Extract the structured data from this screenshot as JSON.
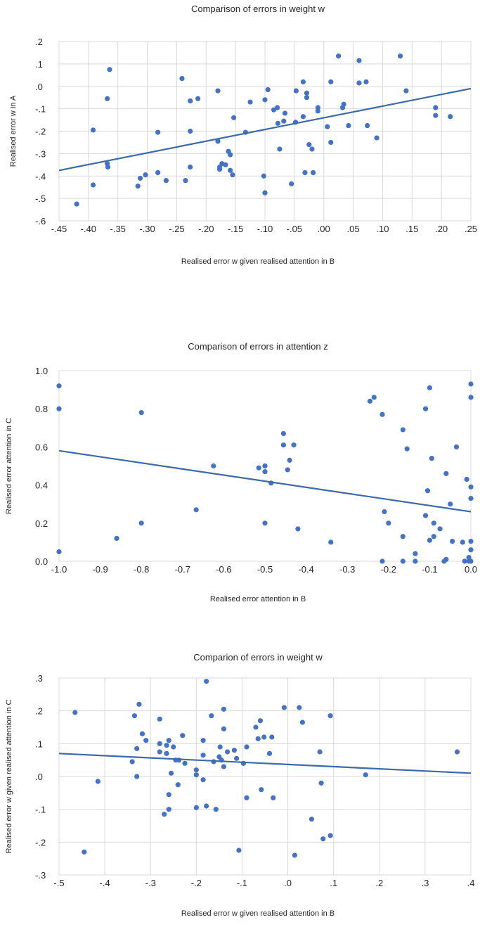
{
  "chart_data": [
    {
      "type": "scatter",
      "title": "Comparison of errors in weight w",
      "xlabel": "Realised error w given realised attention in B",
      "ylabel": "Realised error w in A",
      "xlim": [
        -0.45,
        0.25
      ],
      "ylim": [
        -0.6,
        0.2
      ],
      "xticks": [
        -0.45,
        -0.4,
        -0.35,
        -0.3,
        -0.25,
        -0.2,
        -0.15,
        -0.1,
        -0.05,
        0.0,
        0.05,
        0.1,
        0.15,
        0.2,
        0.25
      ],
      "xtick_labels": [
        "-.45",
        "-.40",
        "-.35",
        "-.30",
        "-.25",
        "-.20",
        "-.15",
        "-.10",
        "-.05",
        ".00",
        ".05",
        ".10",
        ".15",
        ".20",
        ".25"
      ],
      "yticks": [
        0.2,
        0.1,
        0.0,
        -0.1,
        -0.2,
        -0.3,
        -0.4,
        -0.5,
        -0.6
      ],
      "ytick_labels": [
        ".2",
        ".1",
        ".0",
        "-.1",
        "-.2",
        "-.3",
        "-.4",
        "-.5",
        "-.6"
      ],
      "grid": true,
      "trendline": {
        "x": [
          -0.45,
          0.25
        ],
        "y": [
          -0.375,
          -0.01
        ]
      },
      "points": [
        [
          -0.42,
          -0.525
        ],
        [
          -0.392,
          -0.195
        ],
        [
          -0.392,
          -0.44
        ],
        [
          -0.368,
          -0.055
        ],
        [
          -0.364,
          0.075
        ],
        [
          -0.368,
          -0.345
        ],
        [
          -0.367,
          -0.36
        ],
        [
          -0.316,
          -0.445
        ],
        [
          -0.312,
          -0.41
        ],
        [
          -0.303,
          -0.395
        ],
        [
          -0.282,
          -0.385
        ],
        [
          -0.282,
          -0.205
        ],
        [
          -0.268,
          -0.42
        ],
        [
          -0.241,
          0.035
        ],
        [
          -0.235,
          -0.42
        ],
        [
          -0.227,
          -0.065
        ],
        [
          -0.227,
          -0.2
        ],
        [
          -0.227,
          -0.36
        ],
        [
          -0.214,
          -0.055
        ],
        [
          -0.18,
          -0.02
        ],
        [
          -0.18,
          -0.245
        ],
        [
          -0.177,
          -0.37
        ],
        [
          -0.177,
          -0.36
        ],
        [
          -0.173,
          -0.345
        ],
        [
          -0.167,
          -0.35
        ],
        [
          -0.162,
          -0.29
        ],
        [
          -0.159,
          -0.375
        ],
        [
          -0.159,
          -0.305
        ],
        [
          -0.155,
          -0.395
        ],
        [
          -0.153,
          -0.14
        ],
        [
          -0.133,
          -0.205
        ],
        [
          -0.125,
          -0.07
        ],
        [
          -0.102,
          -0.4
        ],
        [
          -0.1,
          -0.475
        ],
        [
          -0.1,
          -0.06
        ],
        [
          -0.095,
          -0.015
        ],
        [
          -0.085,
          -0.105
        ],
        [
          -0.079,
          -0.095
        ],
        [
          -0.078,
          -0.165
        ],
        [
          -0.075,
          -0.28
        ],
        [
          -0.068,
          -0.155
        ],
        [
          -0.066,
          -0.12
        ],
        [
          -0.055,
          -0.435
        ],
        [
          -0.048,
          -0.16
        ],
        [
          -0.047,
          -0.02
        ],
        [
          -0.035,
          0.02
        ],
        [
          -0.035,
          -0.135
        ],
        [
          -0.032,
          -0.385
        ],
        [
          -0.029,
          -0.03
        ],
        [
          -0.029,
          -0.05
        ],
        [
          -0.025,
          -0.26
        ],
        [
          -0.02,
          -0.28
        ],
        [
          -0.018,
          -0.385
        ],
        [
          -0.01,
          -0.095
        ],
        [
          -0.01,
          -0.11
        ],
        [
          0.006,
          -0.18
        ],
        [
          0.012,
          0.02
        ],
        [
          0.012,
          -0.25
        ],
        [
          0.025,
          0.135
        ],
        [
          0.032,
          -0.095
        ],
        [
          0.034,
          -0.08
        ],
        [
          0.042,
          -0.175
        ],
        [
          0.06,
          0.115
        ],
        [
          0.06,
          0.015
        ],
        [
          0.072,
          0.02
        ],
        [
          0.074,
          -0.175
        ],
        [
          0.09,
          -0.23
        ],
        [
          0.13,
          0.135
        ],
        [
          0.14,
          -0.02
        ],
        [
          0.19,
          -0.095
        ],
        [
          0.19,
          -0.13
        ],
        [
          0.215,
          -0.135
        ]
      ]
    },
    {
      "type": "scatter",
      "title": "Comparison of errors in attention z",
      "xlabel": "Realised error attention in B",
      "ylabel": "Realised error attention in C",
      "xlim": [
        -1.0,
        0.0
      ],
      "ylim": [
        0.0,
        1.0
      ],
      "xticks": [
        -1.0,
        -0.9,
        -0.8,
        -0.7,
        -0.6,
        -0.5,
        -0.4,
        -0.3,
        -0.2,
        -0.1,
        0.0
      ],
      "xtick_labels": [
        "-1.0",
        "-0.9",
        "-0.8",
        "-0.7",
        "-0.6",
        "-0.5",
        "-0.4",
        "-0.3",
        "-0.2",
        "-0.1",
        "0.0"
      ],
      "yticks": [
        1.0,
        0.8,
        0.6,
        0.4,
        0.2,
        0.0
      ],
      "ytick_labels": [
        "1.0",
        "0.8",
        "0.6",
        "0.4",
        "0.2",
        "0.0"
      ],
      "grid": false,
      "trendline": {
        "x": [
          -1.0,
          0.0
        ],
        "y": [
          0.58,
          0.26
        ]
      },
      "points": [
        [
          -1.0,
          0.92
        ],
        [
          -1.0,
          0.8
        ],
        [
          -1.0,
          0.05
        ],
        [
          -0.86,
          0.12
        ],
        [
          -0.8,
          0.78
        ],
        [
          -0.8,
          0.2
        ],
        [
          -0.667,
          0.27
        ],
        [
          -0.625,
          0.5
        ],
        [
          -0.515,
          0.49
        ],
        [
          -0.5,
          0.5
        ],
        [
          -0.5,
          0.5
        ],
        [
          -0.5,
          0.47
        ],
        [
          -0.5,
          0.2
        ],
        [
          -0.485,
          0.41
        ],
        [
          -0.455,
          0.67
        ],
        [
          -0.455,
          0.61
        ],
        [
          -0.445,
          0.48
        ],
        [
          -0.44,
          0.53
        ],
        [
          -0.43,
          0.61
        ],
        [
          -0.42,
          0.17
        ],
        [
          -0.34,
          0.1
        ],
        [
          -0.245,
          0.84
        ],
        [
          -0.235,
          0.86
        ],
        [
          -0.215,
          0.77
        ],
        [
          -0.21,
          0.26
        ],
        [
          -0.2,
          0.2
        ],
        [
          -0.215,
          0.0
        ],
        [
          -0.165,
          0.69
        ],
        [
          -0.165,
          0.13
        ],
        [
          -0.165,
          0.0
        ],
        [
          -0.155,
          0.59
        ],
        [
          -0.135,
          0.04
        ],
        [
          -0.135,
          0.0
        ],
        [
          -0.11,
          0.8
        ],
        [
          -0.11,
          0.24
        ],
        [
          -0.105,
          0.37
        ],
        [
          -0.1,
          0.91
        ],
        [
          -0.095,
          0.54
        ],
        [
          -0.1,
          0.11
        ],
        [
          -0.09,
          0.2
        ],
        [
          -0.09,
          0.13
        ],
        [
          -0.075,
          0.17
        ],
        [
          -0.065,
          0.0
        ],
        [
          -0.06,
          0.46
        ],
        [
          -0.06,
          0.01
        ],
        [
          -0.05,
          0.3
        ],
        [
          -0.045,
          0.105
        ],
        [
          -0.035,
          0.6
        ],
        [
          -0.02,
          0.1
        ],
        [
          -0.015,
          0.0
        ],
        [
          -0.01,
          0.43
        ],
        [
          -0.005,
          0.0
        ],
        [
          0.0,
          0.93
        ],
        [
          0.0,
          0.86
        ],
        [
          0.0,
          0.39
        ],
        [
          0.0,
          0.33
        ],
        [
          0.0,
          0.105
        ],
        [
          0.0,
          0.06
        ],
        [
          0.0,
          0.0
        ],
        [
          -0.005,
          0.02
        ]
      ]
    },
    {
      "type": "scatter",
      "title": "Comparion of errors in weight w",
      "xlabel": "Realised error w given realised attention in B",
      "ylabel": "Realised error w given realised attention in C",
      "xlim": [
        -0.5,
        0.4
      ],
      "ylim": [
        -0.3,
        0.3
      ],
      "xticks": [
        -0.5,
        -0.4,
        -0.3,
        -0.2,
        -0.1,
        0.0,
        0.1,
        0.2,
        0.3,
        0.4
      ],
      "xtick_labels": [
        "-.5",
        "-.4",
        "-.3",
        "-.2",
        "-.1",
        ".0",
        ".1",
        ".2",
        ".3",
        ".4"
      ],
      "yticks": [
        0.3,
        0.2,
        0.1,
        0.0,
        -0.1,
        -0.2,
        -0.3
      ],
      "ytick_labels": [
        ".3",
        ".2",
        ".1",
        ".0",
        "-.1",
        "-.2",
        "-.3"
      ],
      "grid": true,
      "trendline": {
        "x": [
          -0.5,
          0.4
        ],
        "y": [
          0.07,
          0.01
        ]
      },
      "points": [
        [
          -0.465,
          0.195
        ],
        [
          -0.445,
          -0.23
        ],
        [
          -0.415,
          -0.015
        ],
        [
          -0.34,
          0.045
        ],
        [
          -0.335,
          0.185
        ],
        [
          -0.33,
          0.0
        ],
        [
          -0.33,
          0.085
        ],
        [
          -0.325,
          0.22
        ],
        [
          -0.318,
          0.13
        ],
        [
          -0.31,
          0.11
        ],
        [
          -0.28,
          0.175
        ],
        [
          -0.28,
          0.075
        ],
        [
          -0.28,
          0.1
        ],
        [
          -0.27,
          -0.115
        ],
        [
          -0.265,
          0.095
        ],
        [
          -0.265,
          0.07
        ],
        [
          -0.26,
          0.11
        ],
        [
          -0.26,
          -0.055
        ],
        [
          -0.26,
          -0.1
        ],
        [
          -0.255,
          0.01
        ],
        [
          -0.25,
          0.09
        ],
        [
          -0.245,
          0.05
        ],
        [
          -0.24,
          -0.025
        ],
        [
          -0.238,
          0.05
        ],
        [
          -0.23,
          0.125
        ],
        [
          -0.225,
          0.04
        ],
        [
          -0.2,
          0.02
        ],
        [
          -0.2,
          0.005
        ],
        [
          -0.2,
          -0.095
        ],
        [
          -0.185,
          -0.01
        ],
        [
          -0.185,
          0.11
        ],
        [
          -0.185,
          0.065
        ],
        [
          -0.178,
          0.29
        ],
        [
          -0.178,
          -0.09
        ],
        [
          -0.167,
          0.185
        ],
        [
          -0.162,
          0.045
        ],
        [
          -0.157,
          -0.1
        ],
        [
          -0.15,
          0.06
        ],
        [
          -0.148,
          0.09
        ],
        [
          -0.145,
          0.05
        ],
        [
          -0.14,
          0.205
        ],
        [
          -0.14,
          0.145
        ],
        [
          -0.14,
          0.03
        ],
        [
          -0.132,
          0.075
        ],
        [
          -0.117,
          0.08
        ],
        [
          -0.112,
          0.055
        ],
        [
          -0.107,
          -0.225
        ],
        [
          -0.097,
          0.04
        ],
        [
          -0.09,
          0.09
        ],
        [
          -0.09,
          -0.065
        ],
        [
          -0.07,
          0.15
        ],
        [
          -0.065,
          0.115
        ],
        [
          -0.06,
          0.17
        ],
        [
          -0.058,
          -0.04
        ],
        [
          -0.052,
          0.12
        ],
        [
          -0.04,
          0.07
        ],
        [
          -0.035,
          0.12
        ],
        [
          -0.032,
          -0.065
        ],
        [
          -0.008,
          0.21
        ],
        [
          0.015,
          -0.24
        ],
        [
          0.025,
          0.21
        ],
        [
          0.032,
          0.165
        ],
        [
          0.052,
          -0.13
        ],
        [
          0.07,
          0.075
        ],
        [
          0.073,
          -0.02
        ],
        [
          0.077,
          -0.19
        ],
        [
          0.093,
          -0.18
        ],
        [
          0.093,
          0.185
        ],
        [
          0.17,
          0.005
        ],
        [
          0.37,
          0.075
        ]
      ]
    }
  ]
}
